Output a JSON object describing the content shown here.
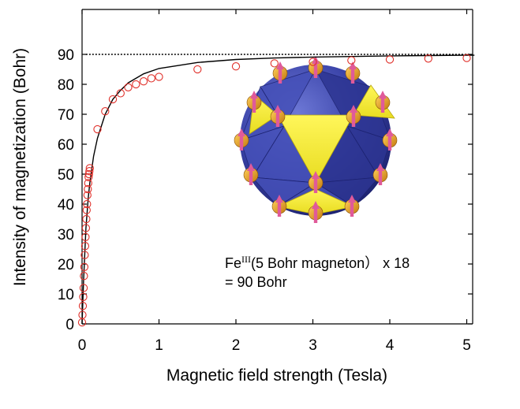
{
  "chart_data": {
    "type": "scatter",
    "xlabel": "Magnetic field strength (Tesla)",
    "ylabel": "Intensity of magnetization (Bohr)",
    "xlim": [
      0,
      5.1
    ],
    "ylim": [
      0,
      95
    ],
    "xticks": [
      0,
      1,
      2,
      3,
      4,
      5
    ],
    "yticks": [
      0,
      10,
      20,
      30,
      40,
      50,
      60,
      70,
      80,
      90
    ],
    "grid": false,
    "legend": "none",
    "colors": {
      "points": "#e0302a",
      "fit": "#000000",
      "saturation": "#000000"
    },
    "saturation_level": 90,
    "series": [
      {
        "kind": "measured-points",
        "x": [
          0.0,
          0.005,
          0.01,
          0.015,
          0.02,
          0.025,
          0.03,
          0.035,
          0.04,
          0.045,
          0.05,
          0.055,
          0.06,
          0.065,
          0.07,
          0.075,
          0.08,
          0.085,
          0.09,
          0.095,
          0.1,
          0.2,
          0.3,
          0.4,
          0.5,
          0.6,
          0.7,
          0.8,
          0.9,
          1.0,
          1.5,
          2.0,
          2.5,
          3.0,
          3.5,
          4.0,
          4.5,
          5.0
        ],
        "y": [
          0.5,
          3,
          6,
          9,
          12,
          16,
          19,
          23,
          26,
          29,
          32,
          35,
          38,
          40,
          43,
          45,
          47,
          49,
          50,
          51,
          52,
          65,
          71,
          75,
          77,
          79,
          80,
          81,
          82,
          82.5,
          85,
          86,
          87,
          87.5,
          88,
          88.3,
          88.6,
          88.8
        ]
      },
      {
        "kind": "fit-curve",
        "x": [
          0,
          0.02,
          0.05,
          0.08,
          0.1,
          0.15,
          0.2,
          0.3,
          0.4,
          0.5,
          0.6,
          0.8,
          1.0,
          1.5,
          2.0,
          2.5,
          3.0,
          3.5,
          4.0,
          4.5,
          5.0,
          5.1
        ],
        "y": [
          0,
          15,
          32,
          42,
          47,
          56,
          62,
          70,
          75,
          78,
          80.5,
          83.5,
          85.3,
          87.3,
          88.3,
          88.8,
          89.1,
          89.3,
          89.5,
          89.6,
          89.7,
          89.7
        ]
      }
    ],
    "annotation": {
      "symbol": "Fe",
      "superscript": "III",
      "line1_rest": "(5 Bohr magneton） x 18",
      "line2": "= 90 Bohr"
    }
  }
}
